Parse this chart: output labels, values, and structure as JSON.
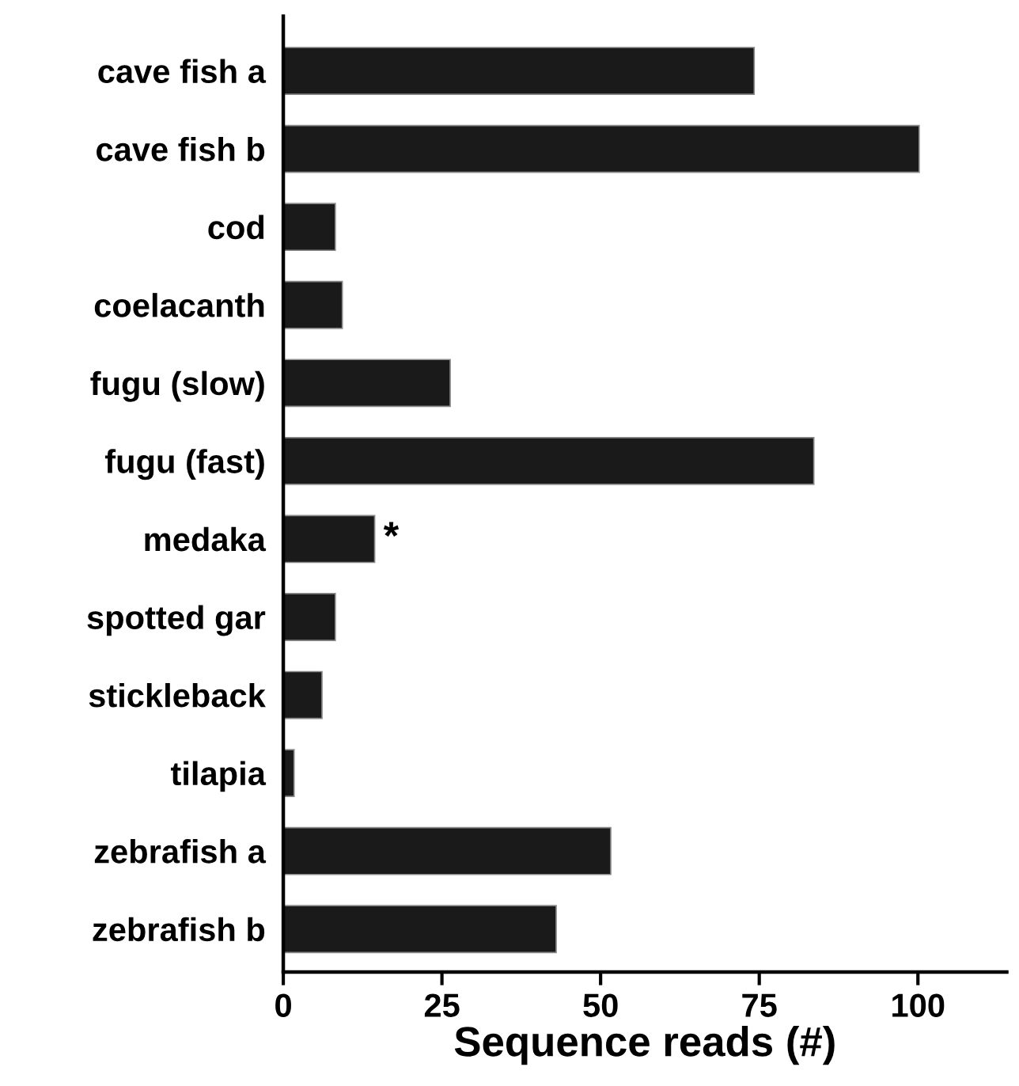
{
  "chart_data": {
    "type": "bar",
    "orientation": "horizontal",
    "xlabel": "Sequence reads (#)",
    "categories": [
      "cave fish a",
      "cave fish b",
      "cod",
      "coelacanth",
      "fugu (slow)",
      "fugu (fast)",
      "medaka",
      "spotted gar",
      "stickleback",
      "tilapia",
      "zebrafish a",
      "zebrafish b"
    ],
    "values": [
      74.2,
      100.2,
      8.2,
      9.3,
      26.3,
      83.6,
      14.4,
      8.2,
      6.1,
      1.7,
      51.6,
      43.0
    ],
    "color": "#1a1a1a",
    "xlim": [
      0,
      114
    ],
    "xticks": [
      0,
      25,
      50,
      75,
      100
    ],
    "grid": false,
    "annotations": [
      {
        "text": "*",
        "x": 14.4,
        "y": "medaka"
      }
    ]
  }
}
